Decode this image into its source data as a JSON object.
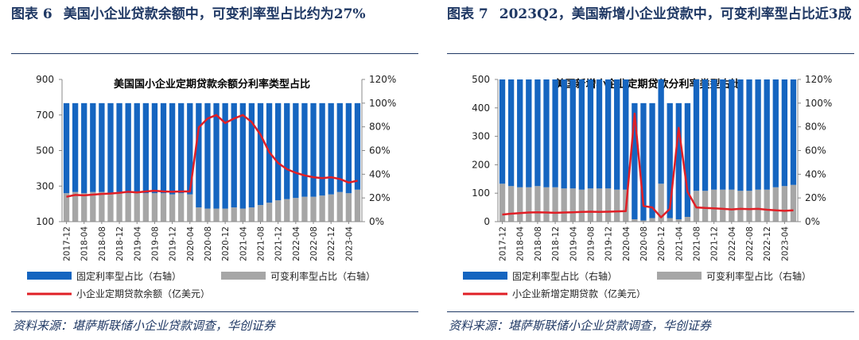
{
  "figures": [
    {
      "id": "left",
      "fig_number": "图表 6",
      "fig_title": "美国小企业贷款余额中，可变利率型占比约为27%",
      "source": "资料来源：堪萨斯联储小企业贷款调查，华创证券",
      "chart_data": {
        "type": "bar",
        "title": "美国国小企业定期贷款余额分利率类型占比",
        "categories": [
          "2017-12",
          "2018-02",
          "2018-04",
          "2018-06",
          "2018-08",
          "2018-10",
          "2018-12",
          "2019-02",
          "2019-04",
          "2019-06",
          "2019-08",
          "2019-10",
          "2019-12",
          "2020-02",
          "2020-04",
          "2020-06",
          "2020-08",
          "2020-10",
          "2020-12",
          "2021-02",
          "2021-04",
          "2021-06",
          "2021-08",
          "2021-10",
          "2021-12",
          "2022-02",
          "2022-04",
          "2022-06",
          "2022-08",
          "2022-10",
          "2022-12",
          "2023-02",
          "2023-04",
          "2023-06"
        ],
        "tick_labels": [
          "2017-12",
          "2018-04",
          "2018-08",
          "2018-12",
          "2019-04",
          "2019-08",
          "2019-12",
          "2020-04",
          "2020-08",
          "2020-12",
          "2021-04",
          "2021-08",
          "2021-12",
          "2022-04",
          "2022-08",
          "2022-12",
          "2023-04"
        ],
        "series": [
          {
            "name": "固定利率型占比（右轴）",
            "axis": "right",
            "color": "#1565c0",
            "values": [
              76,
              75,
              76,
              75,
              75,
              76,
              75,
              76,
              75,
              76,
              76,
              76,
              77,
              76,
              77,
              88,
              89,
              89,
              89,
              88,
              89,
              88,
              86,
              84,
              82,
              81,
              80,
              79,
              79,
              78,
              77,
              75,
              76,
              73
            ]
          },
          {
            "name": "可变利率型占比（右轴）",
            "axis": "right",
            "color": "#a6a6a6",
            "values": [
              24,
              25,
              24,
              25,
              25,
              24,
              25,
              24,
              25,
              24,
              24,
              24,
              23,
              24,
              23,
              12,
              11,
              11,
              11,
              12,
              11,
              12,
              14,
              16,
              18,
              19,
              20,
              21,
              21,
              22,
              23,
              25,
              24,
              27
            ]
          },
          {
            "name": "小企业定期贷款余额（亿美元）",
            "axis": "left",
            "type": "line",
            "color": "#e01f26",
            "values": [
              240,
              250,
              248,
              252,
              256,
              258,
              262,
              268,
              264,
              270,
              274,
              270,
              268,
              270,
              270,
              630,
              680,
              700,
              655,
              680,
              700,
              660,
              590,
              490,
              430,
              395,
              375,
              360,
              350,
              345,
              350,
              340,
              320,
              330
            ]
          }
        ],
        "ylim_left": [
          100,
          900
        ],
        "yticks_left": [
          100,
          300,
          500,
          700,
          900
        ],
        "ylim_right": [
          0,
          120
        ],
        "yticks_right": [
          "0%",
          "20%",
          "40%",
          "60%",
          "80%",
          "100%",
          "120%"
        ],
        "legend": [
          "固定利率型占比（右轴）",
          "可变利率型占比（右轴）",
          "小企业定期贷款余额（亿美元）"
        ],
        "grid": false
      }
    },
    {
      "id": "right",
      "fig_number": "图表 7",
      "fig_title": "2023Q2，美国新增小企业贷款中，可变利率型占比近3成",
      "source": "资料来源：堪萨斯联储小企业贷款调查，华创证券",
      "chart_data": {
        "type": "bar",
        "title": "美国新增小企业定期贷款分利率类型占比",
        "categories": [
          "2017-12",
          "2018-02",
          "2018-04",
          "2018-06",
          "2018-08",
          "2018-10",
          "2018-12",
          "2019-02",
          "2019-04",
          "2019-06",
          "2019-08",
          "2019-10",
          "2019-12",
          "2020-02",
          "2020-04",
          "2020-06",
          "2020-08",
          "2020-10",
          "2020-12",
          "2021-02",
          "2021-04",
          "2021-06",
          "2021-08",
          "2021-10",
          "2021-12",
          "2022-02",
          "2022-04",
          "2022-06",
          "2022-08",
          "2022-10",
          "2022-12",
          "2023-02",
          "2023-04",
          "2023-06"
        ],
        "tick_labels": [
          "2017-12",
          "2018-04",
          "2018-08",
          "2018-12",
          "2019-04",
          "2019-08",
          "2019-12",
          "2020-04",
          "2020-08",
          "2020-12",
          "2021-04",
          "2021-08",
          "2021-12",
          "2022-04",
          "2022-08",
          "2022-12",
          "2023-04"
        ],
        "series": [
          {
            "name": "固定利率型占比（右轴）",
            "axis": "right",
            "color": "#1565c0",
            "values": [
              88,
              90,
              91,
              91,
              90,
              91,
              91,
              92,
              92,
              93,
              92,
              92,
              92,
              93,
              93,
              98,
              99,
              97,
              88,
              97,
              98,
              96,
              94,
              94,
              93,
              93,
              93,
              94,
              94,
              93,
              93,
              91,
              90,
              89
            ]
          },
          {
            "name": "可变利率型占比（右轴）",
            "axis": "right",
            "color": "#a6a6a6",
            "values": [
              32,
              30,
              29,
              29,
              30,
              29,
              29,
              28,
              28,
              27,
              28,
              28,
              28,
              27,
              27,
              2,
              1,
              3,
              32,
              3,
              2,
              4,
              26,
              26,
              27,
              27,
              27,
              26,
              26,
              27,
              27,
              29,
              30,
              31
            ]
          },
          {
            "name": "小企业新增定期贷款（亿美元）",
            "axis": "left",
            "type": "line",
            "color": "#e01f26",
            "values": [
              25,
              28,
              30,
              32,
              33,
              32,
              31,
              32,
              33,
              34,
              35,
              34,
              35,
              36,
              37,
              380,
              55,
              50,
              15,
              45,
              330,
              105,
              50,
              48,
              47,
              45,
              43,
              45,
              44,
              45,
              42,
              40,
              38,
              40
            ]
          }
        ],
        "ylim_left": [
          0,
          500
        ],
        "yticks_left": [
          0,
          100,
          200,
          300,
          400,
          500
        ],
        "ylim_right": [
          0,
          120
        ],
        "yticks_right": [
          "0%",
          "20%",
          "40%",
          "60%",
          "80%",
          "100%",
          "120%"
        ],
        "legend": [
          "固定利率型占比（右轴）",
          "可变利率型占比（右轴）",
          "小企业新增定期贷款（亿美元）"
        ],
        "grid": false
      }
    }
  ]
}
